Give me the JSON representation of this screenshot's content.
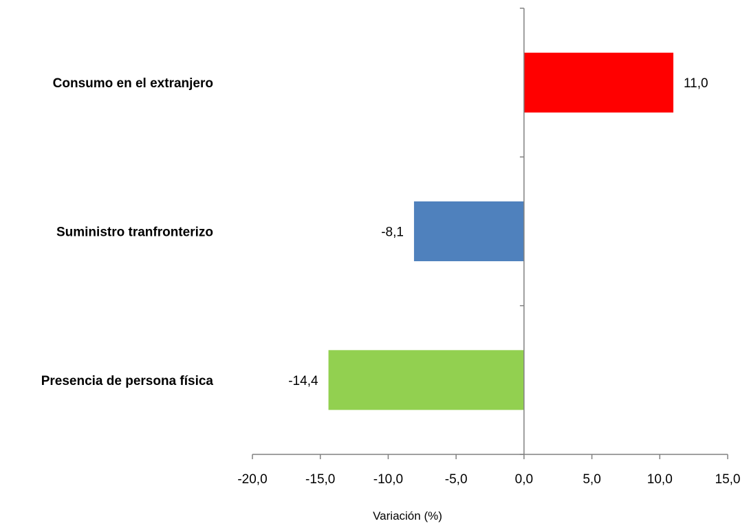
{
  "chart_data": {
    "type": "bar",
    "orientation": "horizontal",
    "categories": [
      "Consumo en el extranjero",
      "Suministro tranfronterizo",
      "Presencia de persona física"
    ],
    "values": [
      11.0,
      -8.1,
      -14.4
    ],
    "value_labels": [
      "11,0",
      "-8,1",
      "-14,4"
    ],
    "bar_colors": [
      "#ff0000",
      "#4f81bd",
      "#92d050"
    ],
    "xlabel": "Variación (%)",
    "xlim": [
      -20,
      15
    ],
    "xticks": [
      -20,
      -15,
      -10,
      -5,
      0,
      5,
      10,
      15
    ],
    "xtick_labels": [
      "-20,0",
      "-15,0",
      "-10,0",
      "-5,0",
      "0,0",
      "5,0",
      "10,0",
      "15,0"
    ],
    "axis_color": "#808080",
    "grid": false,
    "legend": "none"
  }
}
